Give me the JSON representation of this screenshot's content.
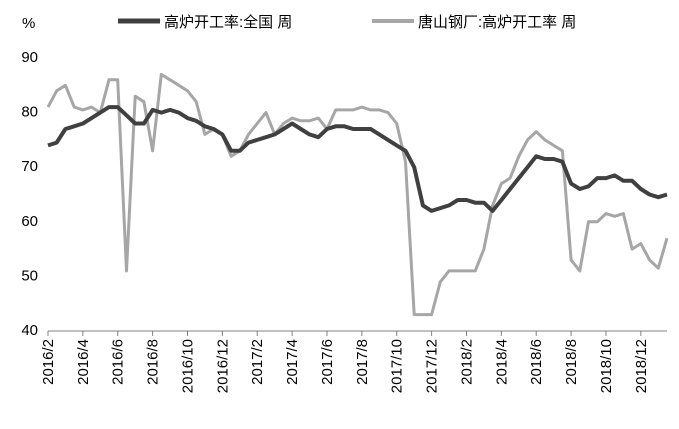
{
  "chart_data": {
    "type": "line",
    "y_label": "%",
    "categories": [
      "2016/2",
      null,
      null,
      null,
      "2016/4",
      null,
      null,
      null,
      "2016/6",
      null,
      null,
      null,
      "2016/8",
      null,
      null,
      null,
      "2016/10",
      null,
      null,
      null,
      "2016/12",
      null,
      null,
      null,
      "2017/2",
      null,
      null,
      null,
      "2017/4",
      null,
      null,
      null,
      "2017/6",
      null,
      null,
      null,
      "2017/8",
      null,
      null,
      null,
      "2017/10",
      null,
      null,
      null,
      "2017/12",
      null,
      null,
      null,
      "2018/2",
      null,
      null,
      null,
      "2018/4",
      null,
      null,
      null,
      "2018/6",
      null,
      null,
      null,
      "2018/8",
      null,
      null,
      null,
      "2018/10",
      null,
      null,
      null,
      "2018/12",
      null,
      null,
      null
    ],
    "series": [
      {
        "name": "高炉开工率:全国 周",
        "color": "#404040",
        "width": 4,
        "values": [
          74,
          74.5,
          77,
          77.5,
          78,
          79,
          80,
          81,
          81,
          79.5,
          78,
          78,
          80.5,
          80,
          80.5,
          80,
          79,
          78.5,
          77.5,
          77,
          76,
          73,
          73,
          74.5,
          75,
          75.5,
          76,
          77,
          78,
          77,
          76,
          75.5,
          77,
          77.5,
          77.5,
          77,
          77,
          77,
          76,
          75,
          74,
          73,
          70,
          63,
          62,
          62.5,
          63,
          64,
          64,
          63.5,
          63.5,
          62,
          64,
          66,
          68,
          70,
          72,
          71.5,
          71.5,
          71,
          67,
          66,
          66.5,
          68,
          68,
          68.5,
          67.5,
          67.5,
          66,
          65,
          64.5,
          65
        ]
      },
      {
        "name": "唐山钢厂:高炉开工率 周",
        "color": "#a6a6a6",
        "width": 3,
        "values": [
          81,
          84,
          85,
          81,
          80.5,
          81,
          80,
          86,
          86,
          51,
          83,
          82,
          73,
          87,
          86,
          85,
          84,
          82,
          76,
          77,
          76,
          72,
          73,
          76,
          78,
          80,
          76,
          78,
          79,
          78.5,
          78.5,
          79,
          77,
          80.5,
          80.5,
          80.5,
          81,
          80.5,
          80.5,
          80,
          78,
          71,
          43,
          43,
          43,
          49,
          51,
          51,
          51,
          51,
          55,
          63,
          67,
          68,
          72,
          75,
          76.5,
          75,
          74,
          73,
          53,
          51,
          60,
          60,
          61.5,
          61,
          61.5,
          55,
          56,
          53,
          51.5,
          57
        ]
      }
    ],
    "ylim": [
      40,
      90
    ],
    "yticks": [
      40,
      50,
      60,
      70,
      80,
      90
    ],
    "grid": false
  }
}
